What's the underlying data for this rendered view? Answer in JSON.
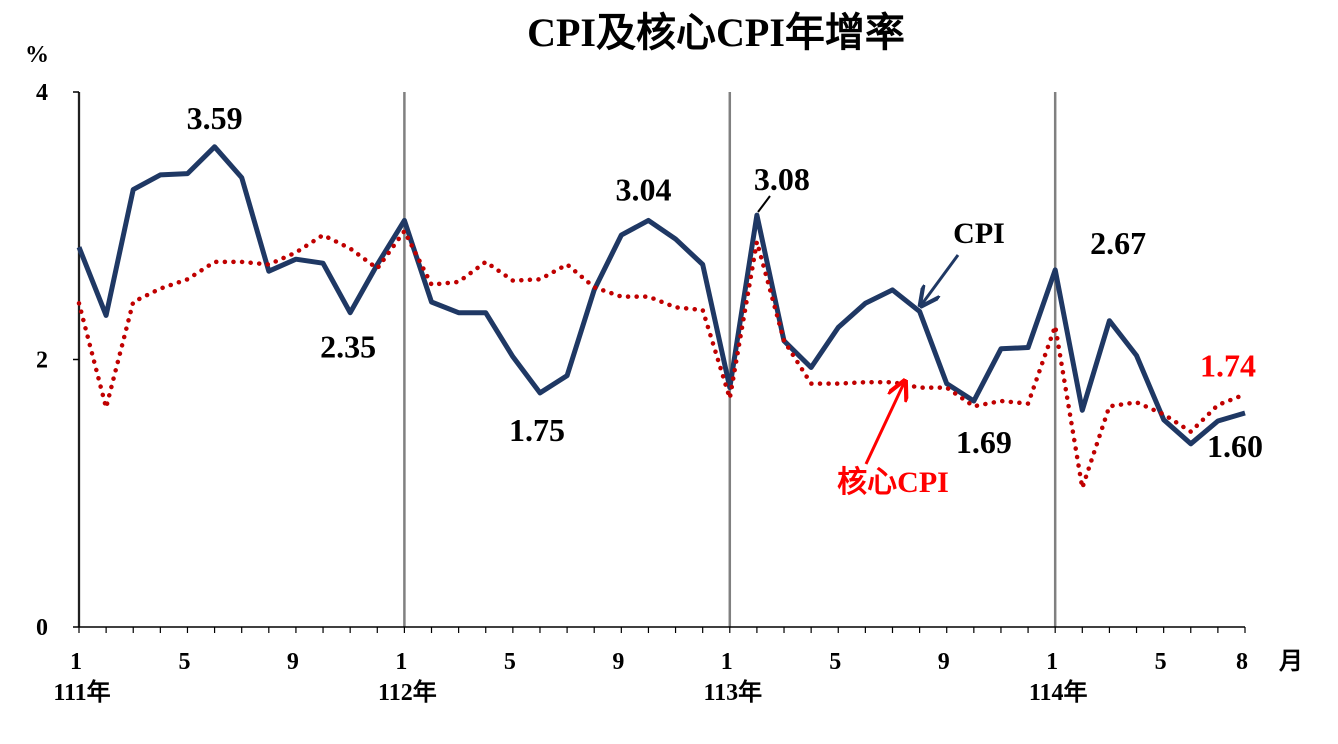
{
  "chart_data": {
    "type": "line",
    "title": "CPI及核心CPI年增率",
    "ylabel": "%",
    "xlabel": "月",
    "ylim": [
      0,
      4
    ],
    "yticks": [
      "0",
      "2",
      "4"
    ],
    "x_month_ticks": [
      "1",
      "5",
      "9",
      "1",
      "5",
      "9",
      "1",
      "5",
      "9",
      "1",
      "5",
      "8"
    ],
    "year_labels": [
      "111年",
      "112年",
      "113年",
      "114年"
    ],
    "series": [
      {
        "name": "CPI",
        "color": "#1f3864",
        "style": "solid",
        "values": [
          2.84,
          2.33,
          3.27,
          3.38,
          3.39,
          3.59,
          3.36,
          2.66,
          2.75,
          2.72,
          2.35,
          2.71,
          3.04,
          2.43,
          2.35,
          2.35,
          2.02,
          1.75,
          1.88,
          2.52,
          2.93,
          3.04,
          2.9,
          2.71,
          1.79,
          3.08,
          2.14,
          1.94,
          2.24,
          2.42,
          2.52,
          2.36,
          1.82,
          1.69,
          2.08,
          2.09,
          2.67,
          1.62,
          2.29,
          2.03,
          1.55,
          1.37,
          1.54,
          1.6
        ]
      },
      {
        "name": "核心CPI",
        "color": "#c00000",
        "style": "dotted",
        "values": [
          2.42,
          1.64,
          2.43,
          2.53,
          2.6,
          2.73,
          2.73,
          2.71,
          2.8,
          2.93,
          2.83,
          2.68,
          2.96,
          2.56,
          2.58,
          2.73,
          2.59,
          2.6,
          2.71,
          2.54,
          2.47,
          2.47,
          2.39,
          2.37,
          1.71,
          2.88,
          2.14,
          1.82,
          1.82,
          1.83,
          1.83,
          1.79,
          1.79,
          1.65,
          1.69,
          1.67,
          2.25,
          1.04,
          1.65,
          1.68,
          1.59,
          1.46,
          1.66,
          1.74
        ]
      }
    ],
    "data_labels": [
      {
        "text": "3.59",
        "series": "CPI",
        "color": "#000000"
      },
      {
        "text": "2.35",
        "series": "CPI",
        "color": "#000000"
      },
      {
        "text": "1.75",
        "series": "CPI",
        "color": "#000000"
      },
      {
        "text": "3.04",
        "series": "CPI",
        "color": "#000000"
      },
      {
        "text": "3.08",
        "series": "CPI",
        "color": "#000000"
      },
      {
        "text": "1.69",
        "series": "CPI",
        "color": "#000000"
      },
      {
        "text": "2.67",
        "series": "CPI",
        "color": "#000000"
      },
      {
        "text": "1.60",
        "series": "CPI",
        "color": "#000000"
      },
      {
        "text": "1.74",
        "series": "核心CPI",
        "color": "#ff0000"
      }
    ],
    "annotations": [
      {
        "text": "CPI",
        "color": "#000000",
        "arrow_color": "#1f3864"
      },
      {
        "text": "核心CPI",
        "color": "#ff0000",
        "arrow_color": "#ff0000"
      }
    ]
  }
}
